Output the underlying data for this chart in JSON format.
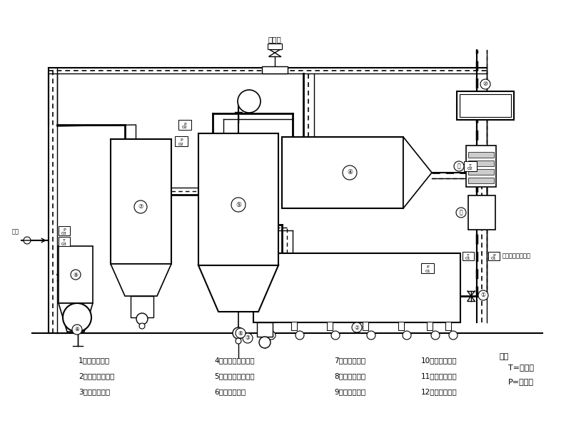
{
  "bg_color": "#ffffff",
  "legend_items": [
    "1、密闭进料器",
    "2、振动流化主机",
    "3、密闭出料器",
    "4、一级布袋除尘器",
    "5、二级布袋除尘器",
    "6、密闭出料阀",
    "7、多级冷凝器",
    "8、溶媒回收罐",
    "9、二级旋液器",
    "10、密闭循环机",
    "11、密闭加热器",
    "12、空气过滤器"
  ],
  "notes": [
    "注：",
    "T=测温点",
    "P=测压点"
  ],
  "label_nitrogen": "氮气阀",
  "label_oxygen": "氧浓度在线检测仪",
  "label_exhaust": "排空"
}
